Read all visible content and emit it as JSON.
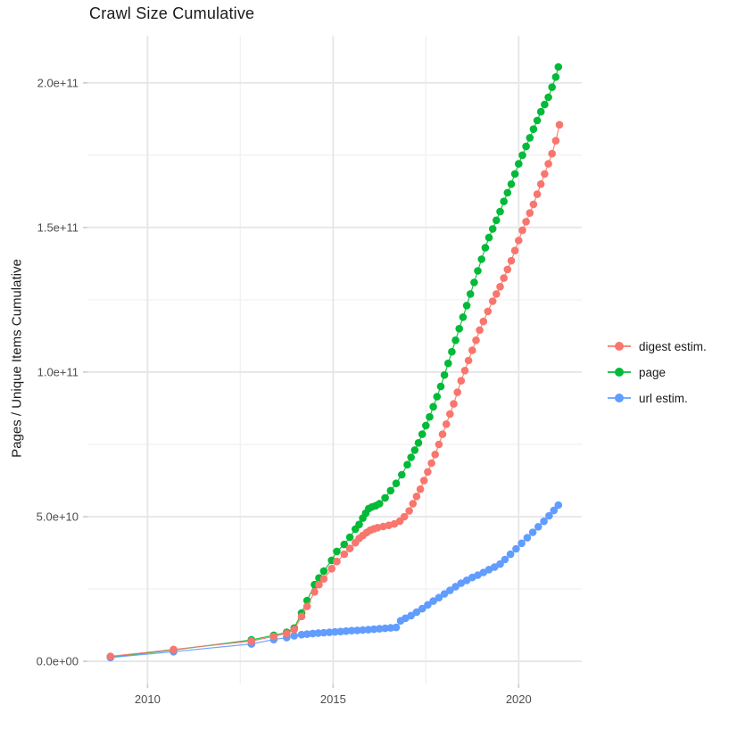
{
  "page": {
    "title": "Crawl Size Cumulative"
  },
  "chart_data": {
    "type": "scatter",
    "title": "Crawl Size Cumulative",
    "xlabel": "",
    "ylabel": "Pages / Unique Items Cumulative",
    "xlim": [
      2008.38,
      2021.7
    ],
    "ylim": [
      -7700000000.0,
      216300000000.0
    ],
    "grid": {
      "major": true,
      "minor": true
    },
    "legend_position": "right",
    "x_axis": {
      "ticks": [
        {
          "value": 2010,
          "label": "2010"
        },
        {
          "value": 2015,
          "label": "2015"
        },
        {
          "value": 2020,
          "label": "2020"
        }
      ],
      "minor_ticks": [
        2012.5,
        2017.5
      ]
    },
    "y_axis": {
      "ticks": [
        {
          "value": 0,
          "label": "0.0e+00"
        },
        {
          "value": 50000000000.0,
          "label": "5.0e+10"
        },
        {
          "value": 100000000000.0,
          "label": "1.0e+11"
        },
        {
          "value": 150000000000.0,
          "label": "1.5e+11"
        },
        {
          "value": 200000000000.0,
          "label": "2.0e+11"
        }
      ],
      "minor_ticks": [
        25000000000.0,
        75000000000.0,
        125000000000.0,
        175000000000.0
      ]
    },
    "series": [
      {
        "name": "digest estim.",
        "color": "#f8766d",
        "draw_order": 3,
        "points": [
          [
            2009.0,
            1700000000.0
          ],
          [
            2010.7,
            4100000000.0
          ],
          [
            2012.8,
            7000000000.0
          ],
          [
            2013.4,
            8600000000.0
          ],
          [
            2013.75,
            9600000000.0
          ],
          [
            2013.95,
            11000000000.0
          ],
          [
            2014.15,
            15500000000.0
          ],
          [
            2014.3,
            19000000000.0
          ],
          [
            2014.5,
            24000000000.0
          ],
          [
            2014.62,
            26500000000.0
          ],
          [
            2014.75,
            28500000000.0
          ],
          [
            2014.96,
            32000000000.0
          ],
          [
            2015.1,
            34500000000.0
          ],
          [
            2015.3,
            37000000000.0
          ],
          [
            2015.45,
            39000000000.0
          ],
          [
            2015.6,
            41000000000.0
          ],
          [
            2015.7,
            42500000000.0
          ],
          [
            2015.8,
            43500000000.0
          ],
          [
            2015.9,
            44500000000.0
          ],
          [
            2016.0,
            45300000000.0
          ],
          [
            2016.1,
            45800000000.0
          ],
          [
            2016.2,
            46200000000.0
          ],
          [
            2016.35,
            46600000000.0
          ],
          [
            2016.5,
            47000000000.0
          ],
          [
            2016.65,
            47500000000.0
          ],
          [
            2016.8,
            48500000000.0
          ],
          [
            2016.92,
            50000000000.0
          ],
          [
            2017.05,
            52000000000.0
          ],
          [
            2017.15,
            54500000000.0
          ],
          [
            2017.25,
            57000000000.0
          ],
          [
            2017.35,
            59500000000.0
          ],
          [
            2017.45,
            62500000000.0
          ],
          [
            2017.55,
            65500000000.0
          ],
          [
            2017.65,
            68500000000.0
          ],
          [
            2017.75,
            71500000000.0
          ],
          [
            2017.85,
            75000000000.0
          ],
          [
            2017.95,
            78500000000.0
          ],
          [
            2018.05,
            82000000000.0
          ],
          [
            2018.15,
            85500000000.0
          ],
          [
            2018.25,
            89000000000.0
          ],
          [
            2018.35,
            93000000000.0
          ],
          [
            2018.45,
            97000000000.0
          ],
          [
            2018.55,
            100500000000.0
          ],
          [
            2018.65,
            104000000000.0
          ],
          [
            2018.75,
            107500000000.0
          ],
          [
            2018.85,
            111000000000.0
          ],
          [
            2018.95,
            114500000000.0
          ],
          [
            2019.05,
            117500000000.0
          ],
          [
            2019.17,
            121000000000.0
          ],
          [
            2019.3,
            124500000000.0
          ],
          [
            2019.4,
            127000000000.0
          ],
          [
            2019.5,
            129500000000.0
          ],
          [
            2019.6,
            132500000000.0
          ],
          [
            2019.7,
            135500000000.0
          ],
          [
            2019.8,
            138500000000.0
          ],
          [
            2019.9,
            142000000000.0
          ],
          [
            2020.0,
            145500000000.0
          ],
          [
            2020.1,
            149000000000.0
          ],
          [
            2020.2,
            152000000000.0
          ],
          [
            2020.3,
            155000000000.0
          ],
          [
            2020.4,
            158000000000.0
          ],
          [
            2020.5,
            161500000000.0
          ],
          [
            2020.6,
            165000000000.0
          ],
          [
            2020.7,
            168500000000.0
          ],
          [
            2020.8,
            172000000000.0
          ],
          [
            2020.9,
            175500000000.0
          ],
          [
            2021.0,
            180000000000.0
          ],
          [
            2021.1,
            185500000000.0
          ]
        ]
      },
      {
        "name": "page",
        "color": "#00ba38",
        "draw_order": 1,
        "points": [
          [
            2009.0,
            1500000000.0
          ],
          [
            2010.7,
            3900000000.0
          ],
          [
            2012.8,
            7400000000.0
          ],
          [
            2013.4,
            9000000000.0
          ],
          [
            2013.75,
            10000000000.0
          ],
          [
            2013.95,
            11500000000.0
          ],
          [
            2014.15,
            16700000000.0
          ],
          [
            2014.3,
            21000000000.0
          ],
          [
            2014.5,
            26500000000.0
          ],
          [
            2014.62,
            28800000000.0
          ],
          [
            2014.75,
            31200000000.0
          ],
          [
            2014.96,
            34900000000.0
          ],
          [
            2015.1,
            38000000000.0
          ],
          [
            2015.3,
            40400000000.0
          ],
          [
            2015.45,
            42900000000.0
          ],
          [
            2015.6,
            45700000000.0
          ],
          [
            2015.7,
            47300000000.0
          ],
          [
            2015.8,
            49500000000.0
          ],
          [
            2015.88,
            51200000000.0
          ],
          [
            2015.96,
            52800000000.0
          ],
          [
            2016.05,
            53400000000.0
          ],
          [
            2016.15,
            53800000000.0
          ],
          [
            2016.25,
            54500000000.0
          ],
          [
            2016.4,
            56500000000.0
          ],
          [
            2016.55,
            59000000000.0
          ],
          [
            2016.7,
            61500000000.0
          ],
          [
            2016.85,
            64500000000.0
          ],
          [
            2017.0,
            68000000000.0
          ],
          [
            2017.1,
            70500000000.0
          ],
          [
            2017.2,
            73000000000.0
          ],
          [
            2017.3,
            75500000000.0
          ],
          [
            2017.4,
            78500000000.0
          ],
          [
            2017.5,
            81500000000.0
          ],
          [
            2017.6,
            84500000000.0
          ],
          [
            2017.7,
            88000000000.0
          ],
          [
            2017.8,
            91500000000.0
          ],
          [
            2017.9,
            95000000000.0
          ],
          [
            2018.0,
            99000000000.0
          ],
          [
            2018.1,
            103000000000.0
          ],
          [
            2018.2,
            107000000000.0
          ],
          [
            2018.3,
            111000000000.0
          ],
          [
            2018.4,
            115000000000.0
          ],
          [
            2018.5,
            119000000000.0
          ],
          [
            2018.6,
            123000000000.0
          ],
          [
            2018.7,
            127000000000.0
          ],
          [
            2018.8,
            131000000000.0
          ],
          [
            2018.9,
            135000000000.0
          ],
          [
            2019.0,
            139000000000.0
          ],
          [
            2019.1,
            143000000000.0
          ],
          [
            2019.2,
            146500000000.0
          ],
          [
            2019.3,
            149500000000.0
          ],
          [
            2019.4,
            152500000000.0
          ],
          [
            2019.5,
            155500000000.0
          ],
          [
            2019.6,
            159000000000.0
          ],
          [
            2019.7,
            162000000000.0
          ],
          [
            2019.8,
            165000000000.0
          ],
          [
            2019.9,
            168500000000.0
          ],
          [
            2020.0,
            172000000000.0
          ],
          [
            2020.1,
            175000000000.0
          ],
          [
            2020.2,
            178000000000.0
          ],
          [
            2020.3,
            181000000000.0
          ],
          [
            2020.4,
            184000000000.0
          ],
          [
            2020.5,
            187000000000.0
          ],
          [
            2020.6,
            190000000000.0
          ],
          [
            2020.7,
            192500000000.0
          ],
          [
            2020.8,
            195000000000.0
          ],
          [
            2020.9,
            198500000000.0
          ],
          [
            2021.0,
            202000000000.0
          ],
          [
            2021.07,
            205500000000.0
          ]
        ]
      },
      {
        "name": "url estim.",
        "color": "#619cff",
        "draw_order": 2,
        "points": [
          [
            2009.0,
            1300000000.0
          ],
          [
            2010.7,
            3300000000.0
          ],
          [
            2012.8,
            6000000000.0
          ],
          [
            2013.4,
            7500000000.0
          ],
          [
            2013.75,
            8200000000.0
          ],
          [
            2013.95,
            8800000000.0
          ],
          [
            2014.15,
            9200000000.0
          ],
          [
            2014.3,
            9400000000.0
          ],
          [
            2014.45,
            9600000000.0
          ],
          [
            2014.6,
            9750000000.0
          ],
          [
            2014.75,
            9900000000.0
          ],
          [
            2014.9,
            10000000000.0
          ],
          [
            2015.05,
            10150000000.0
          ],
          [
            2015.2,
            10300000000.0
          ],
          [
            2015.35,
            10450000000.0
          ],
          [
            2015.5,
            10600000000.0
          ],
          [
            2015.65,
            10700000000.0
          ],
          [
            2015.8,
            10800000000.0
          ],
          [
            2015.95,
            10950000000.0
          ],
          [
            2016.1,
            11100000000.0
          ],
          [
            2016.25,
            11250000000.0
          ],
          [
            2016.4,
            11400000000.0
          ],
          [
            2016.55,
            11550000000.0
          ],
          [
            2016.7,
            11700000000.0
          ],
          [
            2016.82,
            14000000000.0
          ],
          [
            2016.95,
            14900000000.0
          ],
          [
            2017.1,
            15800000000.0
          ],
          [
            2017.25,
            17000000000.0
          ],
          [
            2017.4,
            18200000000.0
          ],
          [
            2017.55,
            19500000000.0
          ],
          [
            2017.7,
            20800000000.0
          ],
          [
            2017.85,
            22000000000.0
          ],
          [
            2018.0,
            23300000000.0
          ],
          [
            2018.15,
            24500000000.0
          ],
          [
            2018.3,
            25800000000.0
          ],
          [
            2018.45,
            27000000000.0
          ],
          [
            2018.6,
            28000000000.0
          ],
          [
            2018.75,
            29000000000.0
          ],
          [
            2018.9,
            29800000000.0
          ],
          [
            2019.05,
            30700000000.0
          ],
          [
            2019.2,
            31700000000.0
          ],
          [
            2019.35,
            32600000000.0
          ],
          [
            2019.5,
            33600000000.0
          ],
          [
            2019.63,
            35200000000.0
          ],
          [
            2019.78,
            37000000000.0
          ],
          [
            2019.93,
            38900000000.0
          ],
          [
            2020.08,
            40800000000.0
          ],
          [
            2020.23,
            42700000000.0
          ],
          [
            2020.38,
            44600000000.0
          ],
          [
            2020.53,
            46500000000.0
          ],
          [
            2020.68,
            48400000000.0
          ],
          [
            2020.82,
            50300000000.0
          ],
          [
            2020.95,
            52200000000.0
          ],
          [
            2021.07,
            54000000000.0
          ]
        ]
      }
    ]
  }
}
